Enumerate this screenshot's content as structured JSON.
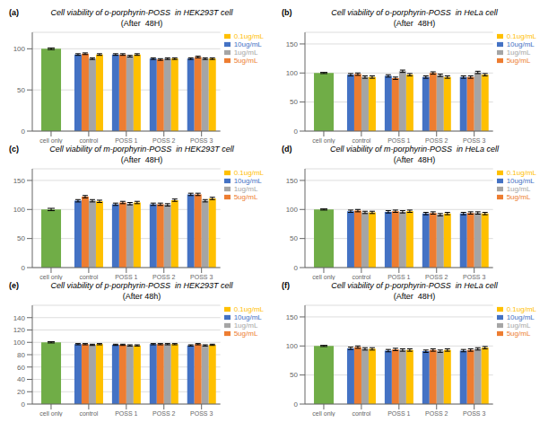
{
  "chart_data": [
    {
      "type": "bar",
      "title": "Cell viability of o-porphyrin-POSS  in HEK293T cell",
      "subtitle": "(After  48H)",
      "annotations": [
        "(a)"
      ],
      "categories": [
        "cell only",
        "control",
        "POSS 1",
        "POSS 2",
        "POSS 3"
      ],
      "series": [
        {
          "color": "#70AD47",
          "values": [
            100,
            null,
            null,
            null,
            null
          ],
          "errors": [
            1,
            null,
            null,
            null,
            null
          ]
        },
        {
          "name": "10ug/mL",
          "color": "#4472C4",
          "values": [
            null,
            93,
            93,
            88,
            88
          ],
          "errors": [
            null,
            1,
            1,
            1,
            1
          ]
        },
        {
          "name": "5ug/mL",
          "color": "#ED7D31",
          "values": [
            null,
            94,
            93,
            87,
            90
          ],
          "errors": [
            null,
            1,
            1,
            1,
            1
          ]
        },
        {
          "name": "1ug/mL",
          "color": "#A5A5A5",
          "values": [
            null,
            88,
            91,
            88,
            88
          ],
          "errors": [
            null,
            1,
            1,
            1,
            1
          ]
        },
        {
          "name": "0.1ug/mL",
          "color": "#FFC000",
          "values": [
            null,
            93,
            93,
            88,
            88
          ],
          "errors": [
            null,
            1,
            1,
            1,
            1
          ]
        }
      ],
      "ylim": [
        0,
        120
      ],
      "yticks": [
        0,
        50,
        100
      ],
      "grid": true,
      "legend": "right"
    },
    {
      "type": "bar",
      "title": "Cell viability of o-porphyrin-POSS  in HeLa cell",
      "subtitle": "(After  48H)",
      "annotations": [
        "(b)"
      ],
      "categories": [
        "cell only",
        "control",
        "POSS 1",
        "POSS 2",
        "POSS 3"
      ],
      "series": [
        {
          "color": "#70AD47",
          "values": [
            100,
            null,
            null,
            null,
            null
          ],
          "errors": [
            1,
            null,
            null,
            null,
            null
          ]
        },
        {
          "name": "10ug/mL",
          "color": "#4472C4",
          "values": [
            null,
            97,
            95,
            93,
            93
          ],
          "errors": [
            null,
            2,
            2,
            2,
            2
          ]
        },
        {
          "name": "5ug/mL",
          "color": "#ED7D31",
          "values": [
            null,
            98,
            91,
            100,
            93
          ],
          "errors": [
            null,
            2,
            2,
            2,
            2
          ]
        },
        {
          "name": "1ug/mL",
          "color": "#A5A5A5",
          "values": [
            null,
            93,
            103,
            96,
            101
          ],
          "errors": [
            null,
            2,
            2,
            2,
            2
          ]
        },
        {
          "name": "0.1ug/mL",
          "color": "#FFC000",
          "values": [
            null,
            93,
            97,
            93,
            97
          ],
          "errors": [
            null,
            2,
            2,
            2,
            2
          ]
        }
      ],
      "ylim": [
        0,
        170
      ],
      "yticks": [
        0,
        50,
        100,
        150
      ],
      "grid": true,
      "legend": "right"
    },
    {
      "type": "bar",
      "title": "Cell viability of m-porphyrin-POSS  in HEK293T cell",
      "subtitle": "(After  48H)",
      "annotations": [
        "(c)"
      ],
      "categories": [
        "cell only",
        "control",
        "POSS 1",
        "POSS 2",
        "POSS 3"
      ],
      "series": [
        {
          "color": "#70AD47",
          "values": [
            100,
            null,
            null,
            null,
            null
          ],
          "errors": [
            2,
            null,
            null,
            null,
            null
          ]
        },
        {
          "name": "10ug/mL",
          "color": "#4472C4",
          "values": [
            null,
            115,
            109,
            109,
            126
          ],
          "errors": [
            null,
            2,
            2,
            2,
            2
          ]
        },
        {
          "name": "5ug/mL",
          "color": "#ED7D31",
          "values": [
            null,
            122,
            112,
            109,
            126
          ],
          "errors": [
            null,
            2,
            2,
            2,
            2
          ]
        },
        {
          "name": "1ug/mL",
          "color": "#A5A5A5",
          "values": [
            null,
            115,
            110,
            108,
            115
          ],
          "errors": [
            null,
            2,
            2,
            2,
            2
          ]
        },
        {
          "name": "0.1ug/mL",
          "color": "#FFC000",
          "values": [
            null,
            114,
            112,
            116,
            119
          ],
          "errors": [
            null,
            2,
            2,
            2,
            2
          ]
        }
      ],
      "ylim": [
        0,
        170
      ],
      "yticks": [
        0,
        50,
        100,
        150
      ],
      "grid": true,
      "legend": "right"
    },
    {
      "type": "bar",
      "title": "Cell viability of m-porphyrin-POSS  in HeLa cell",
      "subtitle": "(After  48H)",
      "annotations": [
        "(d)"
      ],
      "categories": [
        "cell only",
        "control",
        "POSS 1",
        "POSS 2",
        "POSS 3"
      ],
      "series": [
        {
          "color": "#70AD47",
          "values": [
            100,
            null,
            null,
            null,
            null
          ],
          "errors": [
            1,
            null,
            null,
            null,
            null
          ]
        },
        {
          "name": "10ug/mL",
          "color": "#4472C4",
          "values": [
            null,
            97,
            96,
            93,
            93
          ],
          "errors": [
            null,
            2,
            2,
            2,
            2
          ]
        },
        {
          "name": "5ug/mL",
          "color": "#ED7D31",
          "values": [
            null,
            98,
            97,
            94,
            94
          ],
          "errors": [
            null,
            2,
            2,
            2,
            2
          ]
        },
        {
          "name": "1ug/mL",
          "color": "#A5A5A5",
          "values": [
            null,
            95,
            96,
            91,
            94
          ],
          "errors": [
            null,
            2,
            2,
            2,
            2
          ]
        },
        {
          "name": "0.1ug/mL",
          "color": "#FFC000",
          "values": [
            null,
            95,
            97,
            93,
            93
          ],
          "errors": [
            null,
            2,
            2,
            2,
            2
          ]
        }
      ],
      "ylim": [
        0,
        170
      ],
      "yticks": [
        0,
        50,
        100,
        150
      ],
      "grid": true,
      "legend": "right"
    },
    {
      "type": "bar",
      "title": "Cell viability of p-porphyrin-POSS  in HEK293T cell",
      "subtitle": "(After 48h)",
      "annotations": [
        "(e)"
      ],
      "categories": [
        "cell only",
        "control",
        "POSS 1",
        "POSS 2",
        "POSS 3"
      ],
      "series": [
        {
          "color": "#70AD47",
          "values": [
            100,
            null,
            null,
            null,
            null
          ],
          "errors": [
            1,
            null,
            null,
            null,
            null
          ]
        },
        {
          "name": "10ug/mL",
          "color": "#4472C4",
          "values": [
            null,
            97,
            96,
            97,
            95
          ],
          "errors": [
            null,
            1,
            1,
            1,
            1
          ]
        },
        {
          "name": "5ug/mL",
          "color": "#ED7D31",
          "values": [
            null,
            97,
            96,
            97,
            97
          ],
          "errors": [
            null,
            1,
            1,
            1,
            1
          ]
        },
        {
          "name": "1ug/mL",
          "color": "#A5A5A5",
          "values": [
            null,
            96,
            95,
            97,
            95
          ],
          "errors": [
            null,
            1,
            1,
            1,
            1
          ]
        },
        {
          "name": "0.1ug/mL",
          "color": "#FFC000",
          "values": [
            null,
            97,
            95,
            97,
            96
          ],
          "errors": [
            null,
            1,
            1,
            1,
            1
          ]
        }
      ],
      "ylim": [
        0,
        160
      ],
      "yticks": [
        0,
        20,
        40,
        60,
        80,
        100,
        120,
        140
      ],
      "grid": true,
      "legend": "right"
    },
    {
      "type": "bar",
      "title": "Cell viability of p-porphyrin-POSS  in HeLa cell",
      "subtitle": "(After  48H)",
      "annotations": [
        "(f)"
      ],
      "categories": [
        "cell only",
        "control",
        "POSS 1",
        "POSS 2",
        "POSS 3"
      ],
      "series": [
        {
          "color": "#70AD47",
          "values": [
            100,
            null,
            null,
            null,
            null
          ],
          "errors": [
            1,
            null,
            null,
            null,
            null
          ]
        },
        {
          "name": "10ug/mL",
          "color": "#4472C4",
          "values": [
            null,
            96,
            92,
            91,
            92
          ],
          "errors": [
            null,
            2,
            2,
            2,
            2
          ]
        },
        {
          "name": "5ug/mL",
          "color": "#ED7D31",
          "values": [
            null,
            98,
            94,
            93,
            93
          ],
          "errors": [
            null,
            2,
            2,
            2,
            2
          ]
        },
        {
          "name": "1ug/mL",
          "color": "#A5A5A5",
          "values": [
            null,
            95,
            93,
            91,
            95
          ],
          "errors": [
            null,
            2,
            2,
            2,
            2
          ]
        },
        {
          "name": "0.1ug/mL",
          "color": "#FFC000",
          "values": [
            null,
            95,
            93,
            93,
            97
          ],
          "errors": [
            null,
            2,
            2,
            2,
            2
          ]
        }
      ],
      "ylim": [
        0,
        170
      ],
      "yticks": [
        0,
        50,
        100,
        150
      ],
      "grid": true,
      "legend": "right"
    }
  ]
}
